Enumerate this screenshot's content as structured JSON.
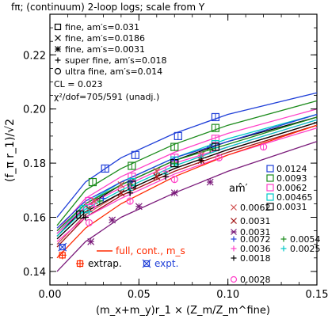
{
  "chart_data": {
    "type": "scatter",
    "title": "fπ;  (continuum) 2-loop logs;  scale from Υ",
    "xlabel": "(m_x+m_y)r_1 × (Z_m/Z_m^fine)",
    "ylabel": "(f_π r_1)/√2",
    "xlim": [
      0,
      0.15
    ],
    "ylim": [
      0.135,
      0.235
    ],
    "x_ticks": [
      0.0,
      0.05,
      0.1,
      0.15
    ],
    "x_tick_labels": [
      "0.00",
      "0.05",
      "0.10",
      "0.15"
    ],
    "y_ticks": [
      0.14,
      0.16,
      0.18,
      0.2,
      0.22
    ],
    "y_tick_labels": [
      "0.14",
      "0.16",
      "0.18",
      "0.20",
      "0.22"
    ],
    "grid": false,
    "info_legend": [
      "fine, am′s=0.031",
      "fine, am′s=0.0186",
      "fine, am′s=0.0031",
      "super fine, am′s=0.018",
      "ultra fine, am′s=0.014",
      "CL = 0.023",
      "χ²/dof=705/591 (unadj.)"
    ],
    "amprime_header": "am̂′",
    "legend_right": [
      {
        "label": "0.0124",
        "color": "#1f3fd8",
        "marker": "square"
      },
      {
        "label": "0.0093",
        "color": "#1a8a1a",
        "marker": "square"
      },
      {
        "label": "0.0062",
        "color": "#ff40c8",
        "marker": "square"
      },
      {
        "label": "0.00465",
        "color": "#00c8c8",
        "marker": "square"
      },
      {
        "label": "0.0031",
        "color": "#000000",
        "marker": "square"
      }
    ],
    "legend_mid": [
      {
        "label": "0.0062",
        "color": "#d05050",
        "marker": "x"
      },
      {
        "label": "0.0031",
        "color": "#a01010",
        "marker": "x"
      },
      {
        "label": "0.0031",
        "color": "#7a1a7a",
        "marker": "star"
      }
    ],
    "legend_bottom": [
      {
        "label": "0.0072",
        "color": "#1f3fd8",
        "marker": "plus"
      },
      {
        "label": "0.0054",
        "color": "#1a8a1a",
        "marker": "plus"
      },
      {
        "label": "0.0036",
        "color": "#ff40c8",
        "marker": "plus"
      },
      {
        "label": "0.0025",
        "color": "#00c8c8",
        "marker": "plus"
      },
      {
        "label": "0.0018",
        "color": "#000000",
        "marker": "plus"
      },
      {
        "label": "0.0028",
        "color": "#ff40c8",
        "marker": "circle"
      }
    ],
    "annotations": {
      "full_cont": "full, cont., m_s",
      "extrap": "extrap.",
      "expt": "expt."
    },
    "series": [
      {
        "name": "0.0124",
        "color": "#1f3fd8",
        "marker": "square",
        "points": [
          [
            0.031,
            0.178
          ],
          [
            0.048,
            0.183
          ],
          [
            0.072,
            0.19
          ],
          [
            0.093,
            0.197
          ]
        ],
        "curve": [
          [
            0.004,
            0.16
          ],
          [
            0.02,
            0.173
          ],
          [
            0.04,
            0.182
          ],
          [
            0.07,
            0.191
          ],
          [
            0.1,
            0.198
          ],
          [
            0.15,
            0.206
          ]
        ]
      },
      {
        "name": "0.0093",
        "color": "#1a8a1a",
        "marker": "square",
        "points": [
          [
            0.024,
            0.173
          ],
          [
            0.046,
            0.179
          ],
          [
            0.07,
            0.186
          ],
          [
            0.093,
            0.193
          ]
        ],
        "curve": [
          [
            0.004,
            0.157
          ],
          [
            0.02,
            0.17
          ],
          [
            0.04,
            0.178
          ],
          [
            0.07,
            0.187
          ],
          [
            0.1,
            0.194
          ],
          [
            0.15,
            0.203
          ]
        ]
      },
      {
        "name": "0.0062",
        "color": "#ff40c8",
        "marker": "square",
        "points": [
          [
            0.022,
            0.166
          ],
          [
            0.046,
            0.175
          ],
          [
            0.07,
            0.182
          ],
          [
            0.093,
            0.189
          ]
        ],
        "curve": [
          [
            0.004,
            0.155
          ],
          [
            0.02,
            0.167
          ],
          [
            0.04,
            0.175
          ],
          [
            0.07,
            0.184
          ],
          [
            0.1,
            0.191
          ],
          [
            0.15,
            0.2
          ]
        ]
      },
      {
        "name": "0.00465",
        "color": "#00c8c8",
        "marker": "square",
        "points": [
          [
            0.019,
            0.163
          ],
          [
            0.046,
            0.173
          ],
          [
            0.07,
            0.181
          ],
          [
            0.093,
            0.187
          ]
        ],
        "curve": [
          [
            0.004,
            0.154
          ],
          [
            0.02,
            0.165
          ],
          [
            0.04,
            0.173
          ],
          [
            0.07,
            0.182
          ],
          [
            0.1,
            0.189
          ],
          [
            0.15,
            0.198
          ]
        ]
      },
      {
        "name": "0.0031",
        "color": "#000000",
        "marker": "square",
        "points": [
          [
            0.017,
            0.161
          ],
          [
            0.046,
            0.172
          ],
          [
            0.07,
            0.18
          ],
          [
            0.093,
            0.186
          ]
        ],
        "curve": [
          [
            0.004,
            0.153
          ],
          [
            0.02,
            0.164
          ],
          [
            0.04,
            0.172
          ],
          [
            0.07,
            0.181
          ],
          [
            0.1,
            0.188
          ],
          [
            0.15,
            0.197
          ]
        ]
      },
      {
        "name": "0.0062",
        "color": "#d05050",
        "marker": "x",
        "points": [
          [
            0.025,
            0.166
          ],
          [
            0.04,
            0.172
          ],
          [
            0.06,
            0.177
          ],
          [
            0.085,
            0.183
          ]
        ],
        "curve": [
          [
            0.004,
            0.15
          ],
          [
            0.02,
            0.161
          ],
          [
            0.04,
            0.169
          ],
          [
            0.07,
            0.178
          ],
          [
            0.1,
            0.185
          ],
          [
            0.15,
            0.195
          ]
        ]
      },
      {
        "name": "0.0031",
        "color": "#a01010",
        "marker": "x",
        "points": [
          [
            0.022,
            0.163
          ],
          [
            0.04,
            0.169
          ],
          [
            0.06,
            0.175
          ],
          [
            0.085,
            0.181
          ]
        ],
        "curve": [
          [
            0.004,
            0.149
          ],
          [
            0.02,
            0.16
          ],
          [
            0.04,
            0.168
          ],
          [
            0.07,
            0.177
          ],
          [
            0.1,
            0.184
          ],
          [
            0.15,
            0.194
          ]
        ]
      },
      {
        "name": "0.0031",
        "color": "#7a1a7a",
        "marker": "star",
        "points": [
          [
            0.023,
            0.151
          ],
          [
            0.035,
            0.159
          ],
          [
            0.05,
            0.164
          ],
          [
            0.07,
            0.169
          ],
          [
            0.09,
            0.173
          ]
        ],
        "curve": [
          [
            0.004,
            0.14
          ],
          [
            0.02,
            0.151
          ],
          [
            0.04,
            0.16
          ],
          [
            0.07,
            0.169
          ],
          [
            0.1,
            0.177
          ],
          [
            0.15,
            0.188
          ]
        ]
      },
      {
        "name": "0.0072",
        "color": "#1f3fd8",
        "marker": "plus",
        "points": [
          [
            0.03,
            0.167
          ],
          [
            0.045,
            0.173
          ],
          [
            0.07,
            0.181
          ],
          [
            0.09,
            0.186
          ]
        ],
        "curve": [
          [
            0.004,
            0.156
          ],
          [
            0.02,
            0.166
          ],
          [
            0.04,
            0.173
          ],
          [
            0.07,
            0.182
          ],
          [
            0.1,
            0.188
          ],
          [
            0.15,
            0.198
          ]
        ]
      },
      {
        "name": "0.0054",
        "color": "#1a8a1a",
        "marker": "plus",
        "points": [
          [
            0.028,
            0.166
          ],
          [
            0.045,
            0.172
          ],
          [
            0.07,
            0.18
          ],
          [
            0.09,
            0.185
          ]
        ],
        "curve": [
          [
            0.004,
            0.155
          ],
          [
            0.02,
            0.165
          ],
          [
            0.04,
            0.172
          ],
          [
            0.07,
            0.181
          ],
          [
            0.1,
            0.187
          ],
          [
            0.15,
            0.197
          ]
        ]
      },
      {
        "name": "0.0036",
        "color": "#ff40c8",
        "marker": "plus",
        "points": [
          [
            0.025,
            0.164
          ],
          [
            0.045,
            0.171
          ],
          [
            0.065,
            0.177
          ],
          [
            0.085,
            0.183
          ]
        ],
        "curve": [
          [
            0.004,
            0.154
          ],
          [
            0.02,
            0.164
          ],
          [
            0.04,
            0.171
          ],
          [
            0.07,
            0.18
          ],
          [
            0.1,
            0.186
          ],
          [
            0.15,
            0.196
          ]
        ]
      },
      {
        "name": "0.0025",
        "color": "#00c8c8",
        "marker": "plus",
        "points": [
          [
            0.022,
            0.162
          ],
          [
            0.045,
            0.17
          ],
          [
            0.065,
            0.176
          ],
          [
            0.085,
            0.182
          ]
        ],
        "curve": [
          [
            0.004,
            0.153
          ],
          [
            0.02,
            0.163
          ],
          [
            0.04,
            0.17
          ],
          [
            0.07,
            0.179
          ],
          [
            0.1,
            0.186
          ],
          [
            0.15,
            0.196
          ]
        ]
      },
      {
        "name": "0.0018",
        "color": "#000000",
        "marker": "plus",
        "points": [
          [
            0.02,
            0.16
          ],
          [
            0.045,
            0.169
          ],
          [
            0.065,
            0.175
          ],
          [
            0.085,
            0.181
          ]
        ],
        "curve": [
          [
            0.004,
            0.152
          ],
          [
            0.02,
            0.162
          ],
          [
            0.04,
            0.169
          ],
          [
            0.07,
            0.178
          ],
          [
            0.1,
            0.185
          ],
          [
            0.15,
            0.195
          ]
        ]
      },
      {
        "name": "0.0028",
        "color": "#ff40c8",
        "marker": "circle",
        "points": [
          [
            0.022,
            0.158
          ],
          [
            0.045,
            0.166
          ],
          [
            0.07,
            0.174
          ],
          [
            0.095,
            0.182
          ],
          [
            0.12,
            0.186
          ]
        ],
        "curve": [
          [
            0.004,
            0.151
          ],
          [
            0.02,
            0.16
          ],
          [
            0.04,
            0.167
          ],
          [
            0.07,
            0.176
          ],
          [
            0.1,
            0.183
          ],
          [
            0.15,
            0.193
          ]
        ]
      },
      {
        "name": "full, cont., m_s",
        "color": "#ff2a00",
        "marker": "none",
        "points": [],
        "curve": [
          [
            0.004,
            0.145
          ],
          [
            0.02,
            0.156
          ],
          [
            0.04,
            0.165
          ],
          [
            0.07,
            0.175
          ],
          [
            0.1,
            0.183
          ],
          [
            0.15,
            0.194
          ]
        ]
      }
    ],
    "extrap_point": [
      0.007,
      0.146
    ],
    "expt_point": [
      0.007,
      0.149
    ]
  }
}
